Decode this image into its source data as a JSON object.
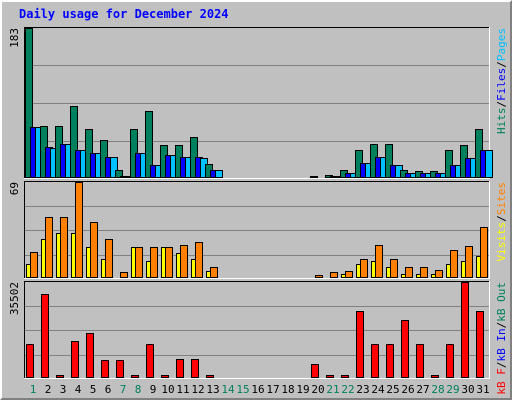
{
  "title": "Daily usage for December 2024",
  "colors": {
    "hits": "#00805c",
    "files": "#0000ff",
    "pages": "#00c0ff",
    "visits": "#ffff00",
    "sites": "#ff8000",
    "kbin": "#ff0000",
    "kbout": "#00805c",
    "kbf": "#ff0000",
    "day_weekday": "#000000",
    "day_weekend": "#00805c"
  },
  "chart_data": [
    {
      "type": "bar",
      "panel": "hits_files_pages",
      "max_label": "183",
      "ylim": [
        0,
        183
      ],
      "legend": [
        {
          "text": "Hits",
          "color": "#00805c"
        },
        {
          "text": "Files",
          "color": "#0000ff"
        },
        {
          "text": "Pages",
          "color": "#00c0ff"
        }
      ],
      "categories": [
        "1",
        "2",
        "3",
        "4",
        "5",
        "6",
        "7",
        "8",
        "9",
        "10",
        "11",
        "12",
        "13",
        "14",
        "15",
        "16",
        "17",
        "18",
        "19",
        "20",
        "21",
        "22",
        "23",
        "24",
        "25",
        "26",
        "27",
        "28",
        "29",
        "30",
        "31"
      ],
      "series": [
        {
          "name": "Hits",
          "values": [
            183,
            64,
            64,
            88,
            60,
            46,
            10,
            60,
            82,
            40,
            40,
            50,
            17,
            0,
            0,
            0,
            0,
            0,
            0,
            2,
            4,
            10,
            34,
            42,
            42,
            10,
            8,
            8,
            34,
            40,
            60
          ]
        },
        {
          "name": "Files",
          "values": [
            62,
            38,
            42,
            34,
            30,
            26,
            2,
            30,
            16,
            28,
            26,
            26,
            10,
            0,
            0,
            0,
            0,
            0,
            0,
            0,
            2,
            6,
            18,
            26,
            16,
            6,
            6,
            6,
            16,
            24,
            34
          ]
        },
        {
          "name": "Pages",
          "values": [
            62,
            36,
            42,
            34,
            30,
            26,
            2,
            30,
            16,
            28,
            26,
            24,
            10,
            0,
            0,
            0,
            0,
            0,
            0,
            0,
            2,
            6,
            18,
            26,
            16,
            6,
            6,
            6,
            16,
            24,
            34
          ]
        }
      ]
    },
    {
      "type": "bar",
      "panel": "visits_sites",
      "max_label": "69",
      "ylim": [
        0,
        69
      ],
      "legend": [
        {
          "text": "Visits",
          "color": "#ffff00"
        },
        {
          "text": "Sites",
          "color": "#ff8000"
        }
      ],
      "categories": [
        "1",
        "2",
        "3",
        "4",
        "5",
        "6",
        "7",
        "8",
        "9",
        "10",
        "11",
        "12",
        "13",
        "14",
        "15",
        "16",
        "17",
        "18",
        "19",
        "20",
        "21",
        "22",
        "23",
        "24",
        "25",
        "26",
        "27",
        "28",
        "29",
        "30",
        "31"
      ],
      "series": [
        {
          "name": "Visits",
          "values": [
            10,
            28,
            32,
            32,
            22,
            14,
            1,
            22,
            12,
            22,
            18,
            14,
            5,
            0,
            0,
            0,
            0,
            0,
            0,
            0,
            1,
            3,
            10,
            12,
            8,
            3,
            3,
            3,
            10,
            12,
            16
          ]
        },
        {
          "name": "Sites",
          "values": [
            19,
            44,
            44,
            69,
            40,
            28,
            4,
            22,
            22,
            22,
            24,
            26,
            8,
            0,
            0,
            0,
            0,
            0,
            0,
            2,
            4,
            5,
            14,
            24,
            14,
            8,
            8,
            6,
            20,
            23,
            37
          ]
        }
      ]
    },
    {
      "type": "bar",
      "panel": "kb",
      "max_label": "35502",
      "ylim": [
        0,
        35502
      ],
      "legend": [
        {
          "text": "kB F",
          "color": "#ff0000"
        },
        {
          "text": "kB In",
          "color": "#0000ff"
        },
        {
          "text": "kB Out",
          "color": "#00805c"
        }
      ],
      "categories": [
        "1",
        "2",
        "3",
        "4",
        "5",
        "6",
        "7",
        "8",
        "9",
        "10",
        "11",
        "12",
        "13",
        "14",
        "15",
        "16",
        "17",
        "18",
        "19",
        "20",
        "21",
        "22",
        "23",
        "24",
        "25",
        "26",
        "27",
        "28",
        "29",
        "30",
        "31"
      ],
      "series": [
        {
          "name": "kB F",
          "values": [
            12600,
            31200,
            1200,
            13500,
            16700,
            6800,
            6800,
            1200,
            12600,
            1200,
            7000,
            7000,
            1200,
            0,
            0,
            0,
            0,
            0,
            0,
            5300,
            1200,
            1200,
            24800,
            12600,
            12600,
            21400,
            12600,
            1200,
            12600,
            35502,
            24800
          ]
        }
      ]
    }
  ],
  "x_labels": [
    "1",
    "2",
    "3",
    "4",
    "5",
    "6",
    "7",
    "8",
    "9",
    "10",
    "11",
    "12",
    "13",
    "14",
    "15",
    "16",
    "17",
    "18",
    "19",
    "20",
    "21",
    "22",
    "23",
    "24",
    "25",
    "26",
    "27",
    "28",
    "29",
    "30",
    "31"
  ],
  "weekend_days": [
    "1",
    "7",
    "8",
    "14",
    "15",
    "21",
    "22",
    "28",
    "29"
  ]
}
